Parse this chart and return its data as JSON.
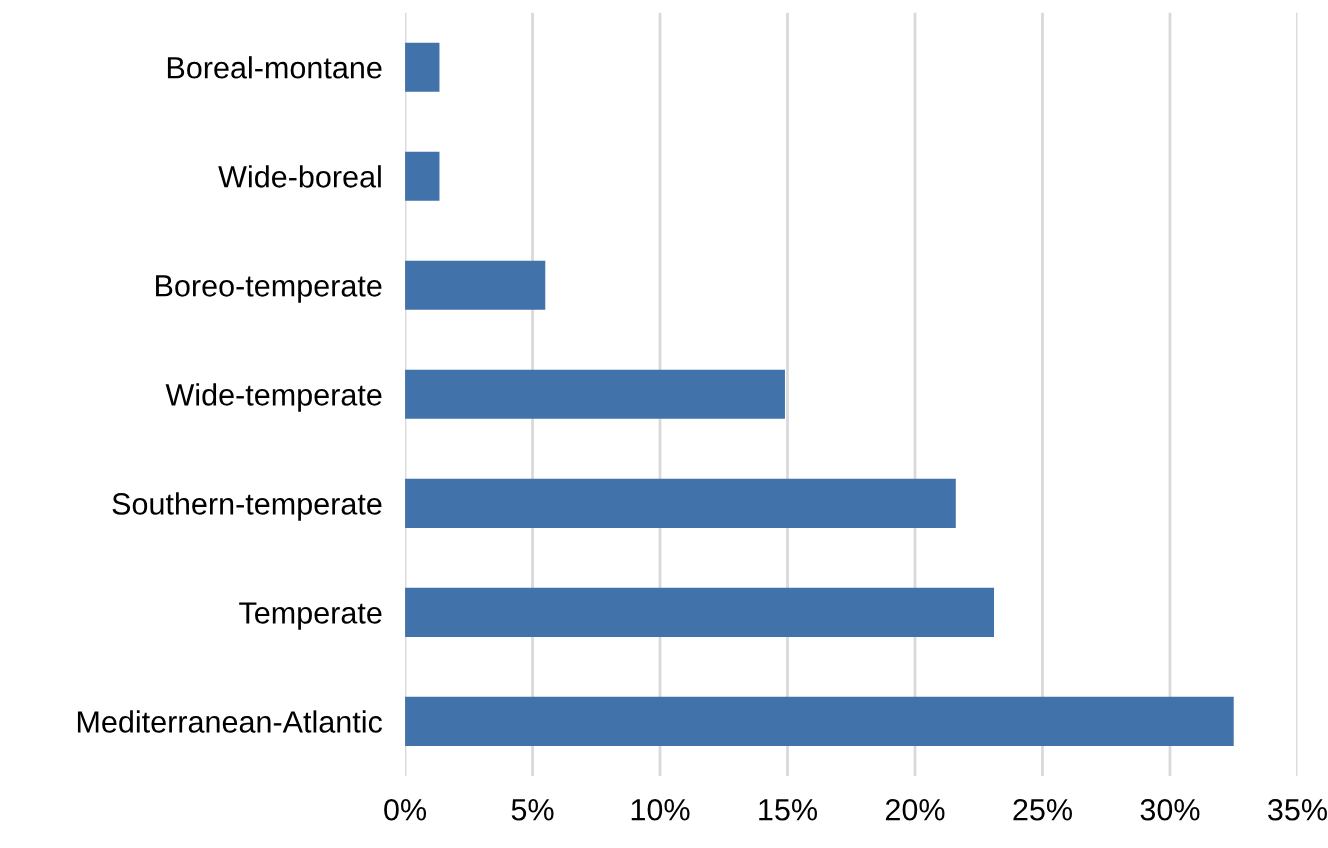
{
  "chart_data": {
    "type": "bar",
    "orientation": "horizontal",
    "categories": [
      "Boreal-montane",
      "Wide-boreal",
      "Boreo-temperate",
      "Wide-temperate",
      "Southern-temperate",
      "Temperate",
      "Mediterranean-Atlantic"
    ],
    "values": [
      1.35,
      1.35,
      5.5,
      14.9,
      21.6,
      23.1,
      32.5
    ],
    "color": "#4173aa",
    "xlim": [
      0,
      35
    ],
    "xticks": [
      {
        "value": 0,
        "label": "0%"
      },
      {
        "value": 5,
        "label": "5%"
      },
      {
        "value": 10,
        "label": "10%"
      },
      {
        "value": 15,
        "label": "15%"
      },
      {
        "value": 20,
        "label": "20%"
      },
      {
        "value": 25,
        "label": "25%"
      },
      {
        "value": 30,
        "label": "30%"
      },
      {
        "value": 35,
        "label": "35%"
      }
    ],
    "grid": "x",
    "legend": false
  }
}
